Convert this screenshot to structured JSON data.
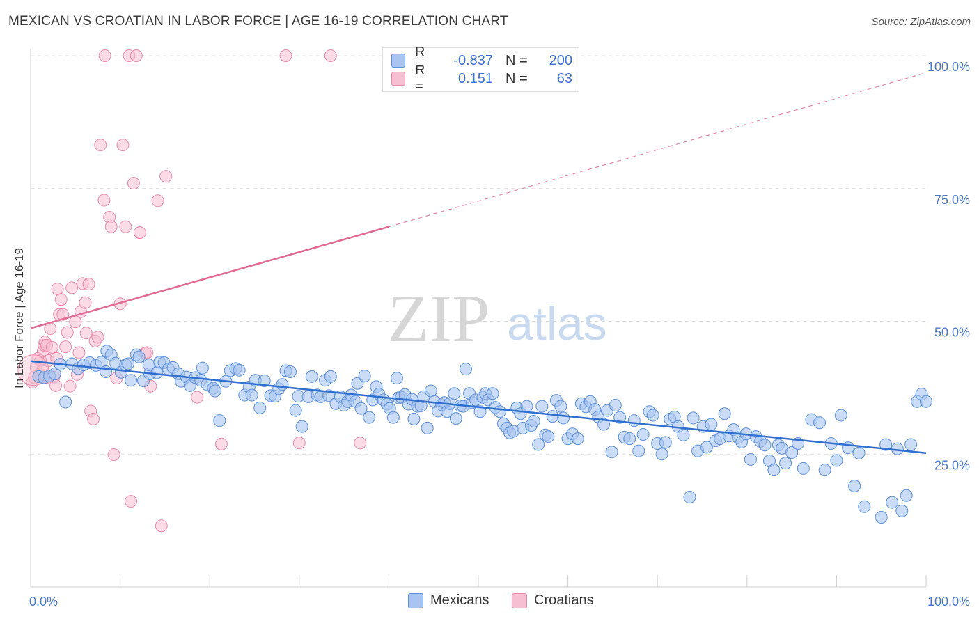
{
  "header": {
    "title": "MEXICAN VS CROATIAN IN LABOR FORCE | AGE 16-19 CORRELATION CHART",
    "source": "Source: ZipAtlas.com"
  },
  "colors": {
    "blue_fill": "#a9c4f0",
    "blue_stroke": "#5b8fd9",
    "blue_line": "#2f6fd0",
    "pink_fill": "#f7c0d2",
    "pink_stroke": "#e98aab",
    "pink_line": "#e06a93",
    "axis_label": "#4a78c8",
    "grid": "#dddddd"
  },
  "stats_legend": [
    {
      "r_label": "R =",
      "r_value": "-0.837",
      "n_label": "N =",
      "n_value": "200"
    },
    {
      "r_label": "R =",
      "r_value": "0.151",
      "n_label": "N =",
      "n_value": "63"
    }
  ],
  "series_legend": [
    "Mexicans",
    "Croatians"
  ],
  "watermark": {
    "zip": "ZIP",
    "atlas": "atlas"
  },
  "chart_data": {
    "type": "scatter",
    "title": "MEXICAN VS CROATIAN IN LABOR FORCE | AGE 16-19 CORRELATION CHART",
    "xlabel": "",
    "ylabel": "In Labor Force | Age 16-19",
    "xlim": [
      0,
      100
    ],
    "ylim": [
      0,
      102
    ],
    "x_tick_labels": [
      "0.0%",
      "100.0%"
    ],
    "y_tick_labels": [
      "25.0%",
      "50.0%",
      "75.0%",
      "100.0%"
    ],
    "y_ticks": [
      25,
      50,
      75,
      100
    ],
    "grid": true,
    "legend_position": "top-center",
    "series": [
      {
        "name": "Mexicans",
        "color": "#5b8fd9",
        "trend": {
          "x0": 0,
          "y0": 42.5,
          "x1": 100,
          "y1": 25.2
        },
        "points": [
          [
            0.9,
            39.6
          ],
          [
            1.5,
            39.4
          ],
          [
            2.1,
            39.7
          ],
          [
            2.7,
            40.1
          ],
          [
            3.3,
            41.9
          ],
          [
            3.9,
            34.8
          ],
          [
            4.6,
            42.0
          ],
          [
            5.3,
            41.1
          ],
          [
            5.9,
            41.8
          ],
          [
            6.6,
            42.2
          ],
          [
            7.3,
            41.7
          ],
          [
            7.9,
            42.3
          ],
          [
            8.4,
            40.5
          ],
          [
            8.5,
            44.4
          ],
          [
            9.0,
            43.7
          ],
          [
            9.5,
            42.1
          ],
          [
            10.1,
            40.4
          ],
          [
            10.6,
            41.8
          ],
          [
            10.9,
            42.0
          ],
          [
            11.2,
            38.9
          ],
          [
            11.8,
            43.7
          ],
          [
            12.1,
            43.3
          ],
          [
            12.6,
            38.8
          ],
          [
            13.3,
            40.1
          ],
          [
            13.2,
            41.8
          ],
          [
            14.1,
            40.3
          ],
          [
            14.4,
            42.3
          ],
          [
            14.9,
            42.2
          ],
          [
            15.4,
            41.0
          ],
          [
            15.9,
            41.3
          ],
          [
            16.5,
            40.1
          ],
          [
            16.8,
            38.7
          ],
          [
            17.4,
            39.5
          ],
          [
            17.8,
            37.9
          ],
          [
            18.4,
            39.4
          ],
          [
            19.0,
            38.9
          ],
          [
            19.2,
            41.2
          ],
          [
            19.7,
            38.1
          ],
          [
            20.4,
            37.4
          ],
          [
            20.6,
            36.9
          ],
          [
            21.1,
            31.3
          ],
          [
            21.8,
            38.7
          ],
          [
            22.3,
            40.7
          ],
          [
            22.9,
            41.1
          ],
          [
            23.3,
            40.8
          ],
          [
            23.9,
            36.1
          ],
          [
            24.4,
            37.6
          ],
          [
            24.7,
            36.1
          ],
          [
            25.1,
            38.9
          ],
          [
            25.6,
            33.7
          ],
          [
            26.1,
            38.8
          ],
          [
            26.8,
            36.0
          ],
          [
            27.3,
            35.9
          ],
          [
            27.7,
            37.3
          ],
          [
            28.1,
            38.1
          ],
          [
            28.5,
            40.7
          ],
          [
            29.0,
            40.5
          ],
          [
            29.6,
            33.2
          ],
          [
            29.9,
            35.9
          ],
          [
            30.3,
            30.2
          ],
          [
            31.0,
            35.8
          ],
          [
            31.4,
            39.6
          ],
          [
            32.0,
            36.1
          ],
          [
            32.4,
            35.8
          ],
          [
            32.9,
            38.9
          ],
          [
            33.3,
            36.0
          ],
          [
            33.5,
            39.6
          ],
          [
            34.1,
            34.5
          ],
          [
            34.6,
            35.8
          ],
          [
            35.0,
            34.2
          ],
          [
            35.4,
            34.9
          ],
          [
            35.8,
            36.1
          ],
          [
            36.3,
            34.9
          ],
          [
            36.5,
            38.3
          ],
          [
            36.9,
            33.6
          ],
          [
            37.3,
            39.7
          ],
          [
            37.8,
            31.9
          ],
          [
            38.2,
            35.2
          ],
          [
            38.6,
            37.7
          ],
          [
            38.9,
            36.3
          ],
          [
            39.4,
            35.2
          ],
          [
            39.8,
            34.4
          ],
          [
            40.1,
            33.6
          ],
          [
            40.5,
            31.9
          ],
          [
            40.9,
            39.3
          ],
          [
            41.1,
            35.6
          ],
          [
            41.4,
            35.7
          ],
          [
            41.8,
            36.2
          ],
          [
            42.2,
            34.4
          ],
          [
            42.6,
            35.3
          ],
          [
            42.8,
            31.6
          ],
          [
            43.2,
            34.0
          ],
          [
            43.6,
            34.1
          ],
          [
            43.9,
            35.8
          ],
          [
            44.3,
            29.9
          ],
          [
            44.7,
            36.9
          ],
          [
            45.1,
            34.9
          ],
          [
            45.5,
            33.1
          ],
          [
            45.9,
            34.3
          ],
          [
            46.2,
            34.7
          ],
          [
            46.5,
            33.0
          ],
          [
            46.8,
            34.5
          ],
          [
            47.3,
            36.4
          ],
          [
            47.5,
            31.7
          ],
          [
            48.0,
            34.1
          ],
          [
            48.3,
            34.0
          ],
          [
            48.6,
            41.0
          ],
          [
            49.0,
            36.4
          ],
          [
            49.3,
            34.7
          ],
          [
            49.7,
            35.2
          ],
          [
            50.2,
            33.0
          ],
          [
            50.5,
            35.7
          ],
          [
            50.8,
            36.4
          ],
          [
            51.1,
            35.2
          ],
          [
            51.6,
            36.4
          ],
          [
            51.9,
            33.8
          ],
          [
            52.4,
            33.0
          ],
          [
            52.8,
            30.7
          ],
          [
            53.2,
            29.9
          ],
          [
            53.5,
            29.0
          ],
          [
            53.9,
            29.3
          ],
          [
            54.3,
            33.7
          ],
          [
            54.7,
            32.6
          ],
          [
            55.0,
            29.9
          ],
          [
            55.4,
            34.0
          ],
          [
            55.9,
            30.4
          ],
          [
            56.2,
            31.2
          ],
          [
            56.7,
            26.8
          ],
          [
            57.1,
            34.0
          ],
          [
            57.5,
            28.6
          ],
          [
            57.8,
            28.3
          ],
          [
            58.3,
            32.1
          ],
          [
            58.7,
            35.1
          ],
          [
            59.2,
            34.0
          ],
          [
            59.5,
            31.8
          ],
          [
            60.0,
            27.9
          ],
          [
            60.5,
            28.8
          ],
          [
            61.1,
            27.9
          ],
          [
            61.5,
            34.5
          ],
          [
            62.0,
            33.9
          ],
          [
            62.5,
            34.9
          ],
          [
            63.0,
            33.4
          ],
          [
            63.4,
            32.0
          ],
          [
            64.0,
            30.6
          ],
          [
            64.4,
            33.2
          ],
          [
            64.9,
            25.4
          ],
          [
            65.3,
            34.2
          ],
          [
            65.8,
            31.9
          ],
          [
            66.3,
            28.2
          ],
          [
            66.9,
            27.9
          ],
          [
            67.4,
            31.3
          ],
          [
            67.9,
            25.6
          ],
          [
            68.4,
            28.7
          ],
          [
            69.1,
            33.0
          ],
          [
            69.5,
            32.3
          ],
          [
            70.0,
            27.0
          ],
          [
            70.5,
            25.0
          ],
          [
            70.9,
            27.2
          ],
          [
            71.4,
            31.6
          ],
          [
            71.9,
            32.0
          ],
          [
            72.3,
            30.2
          ],
          [
            72.9,
            28.6
          ],
          [
            73.6,
            16.9
          ],
          [
            74.0,
            31.8
          ],
          [
            74.5,
            25.6
          ],
          [
            75.1,
            30.2
          ],
          [
            75.5,
            26.3
          ],
          [
            76.0,
            30.6
          ],
          [
            76.5,
            27.5
          ],
          [
            77.0,
            27.9
          ],
          [
            77.5,
            32.6
          ],
          [
            78.0,
            28.4
          ],
          [
            78.5,
            29.6
          ],
          [
            79.0,
            28.1
          ],
          [
            79.4,
            27.3
          ],
          [
            79.9,
            28.8
          ],
          [
            80.4,
            24.0
          ],
          [
            81.0,
            28.3
          ],
          [
            81.5,
            27.4
          ],
          [
            82.0,
            26.7
          ],
          [
            82.5,
            23.7
          ],
          [
            83.0,
            22.0
          ],
          [
            83.5,
            26.7
          ],
          [
            83.9,
            26.1
          ],
          [
            84.3,
            23.3
          ],
          [
            85.0,
            25.3
          ],
          [
            85.7,
            27.0
          ],
          [
            86.3,
            22.3
          ],
          [
            87.2,
            31.5
          ],
          [
            88.1,
            30.9
          ],
          [
            88.7,
            22.0
          ],
          [
            89.4,
            27.0
          ],
          [
            90.0,
            23.8
          ],
          [
            90.5,
            32.3
          ],
          [
            91.3,
            26.2
          ],
          [
            92.0,
            19.0
          ],
          [
            92.5,
            25.2
          ],
          [
            93.1,
            15.1
          ],
          [
            95.0,
            13.1
          ],
          [
            95.5,
            26.8
          ],
          [
            96.2,
            15.9
          ],
          [
            96.8,
            26.0
          ],
          [
            97.3,
            14.3
          ],
          [
            97.8,
            17.2
          ],
          [
            98.3,
            26.8
          ],
          [
            99.0,
            34.9
          ],
          [
            99.5,
            36.3
          ],
          [
            100.0,
            34.9
          ]
        ]
      },
      {
        "name": "Croatians",
        "color": "#e98aab",
        "trend": {
          "x0": 0,
          "y0": 48.7,
          "x1": 40,
          "y1": 67.8,
          "dashed_to_x": 100,
          "dashed_to_y": 96.8
        },
        "points": [
          [
            0.2,
            38.5
          ],
          [
            0.4,
            39.4
          ],
          [
            0.6,
            41.3
          ],
          [
            0.8,
            43.0
          ],
          [
            1.0,
            40.0
          ],
          [
            1.1,
            42.6
          ],
          [
            1.3,
            40.7
          ],
          [
            1.4,
            44.4
          ],
          [
            1.5,
            45.5
          ],
          [
            1.6,
            46.1
          ],
          [
            1.7,
            39.4
          ],
          [
            1.8,
            45.5
          ],
          [
            2.0,
            42.6
          ],
          [
            2.2,
            48.6
          ],
          [
            2.4,
            45.1
          ],
          [
            2.6,
            39.5
          ],
          [
            2.8,
            37.9
          ],
          [
            2.9,
            43.0
          ],
          [
            3.2,
            51.3
          ],
          [
            3.0,
            56.1
          ],
          [
            3.4,
            54.1
          ],
          [
            3.6,
            51.3
          ],
          [
            3.9,
            45.2
          ],
          [
            4.1,
            47.9
          ],
          [
            4.4,
            37.8
          ],
          [
            4.6,
            56.3
          ],
          [
            5.0,
            49.9
          ],
          [
            5.2,
            40.0
          ],
          [
            5.4,
            44.1
          ],
          [
            5.6,
            51.8
          ],
          [
            5.8,
            57.1
          ],
          [
            6.1,
            53.5
          ],
          [
            6.2,
            47.8
          ],
          [
            6.5,
            57.0
          ],
          [
            6.7,
            33.1
          ],
          [
            7.0,
            31.6
          ],
          [
            7.2,
            46.3
          ],
          [
            7.5,
            47.0
          ],
          [
            7.8,
            83.2
          ],
          [
            8.2,
            72.8
          ],
          [
            8.3,
            100.0
          ],
          [
            8.8,
            69.6
          ],
          [
            9.0,
            67.8
          ],
          [
            9.3,
            24.9
          ],
          [
            9.6,
            39.3
          ],
          [
            10.0,
            53.3
          ],
          [
            10.3,
            83.2
          ],
          [
            10.6,
            67.8
          ],
          [
            11.0,
            100.0
          ],
          [
            11.2,
            16.1
          ],
          [
            11.5,
            76.0
          ],
          [
            11.8,
            100.0
          ],
          [
            12.2,
            66.7
          ],
          [
            12.8,
            44.0
          ],
          [
            13.0,
            44.1
          ],
          [
            13.4,
            37.8
          ],
          [
            14.2,
            72.7
          ],
          [
            14.6,
            11.5
          ],
          [
            15.1,
            77.3
          ],
          [
            18.6,
            35.7
          ],
          [
            21.3,
            26.9
          ],
          [
            28.5,
            100.0
          ],
          [
            30.0,
            27.1
          ],
          [
            33.5,
            100.0
          ],
          [
            36.8,
            27.1
          ]
        ]
      }
    ]
  }
}
